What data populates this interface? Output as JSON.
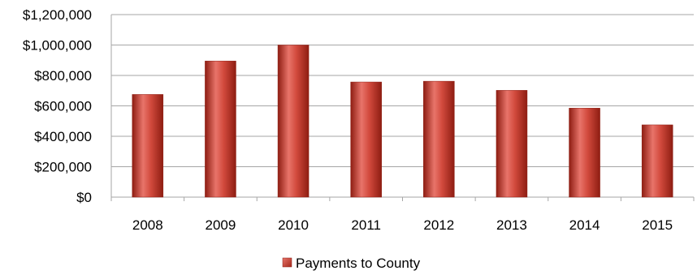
{
  "chart_data": {
    "type": "bar",
    "categories": [
      "2008",
      "2009",
      "2010",
      "2011",
      "2012",
      "2013",
      "2014",
      "2015"
    ],
    "series": [
      {
        "name": "Payments to County",
        "values": [
          675000,
          895000,
          1000000,
          757000,
          762000,
          702000,
          585000,
          475000
        ]
      }
    ],
    "title": "",
    "xlabel": "",
    "ylabel": "",
    "ylim": [
      0,
      1200000
    ],
    "yticks": [
      "$0",
      "$200,000",
      "$400,000",
      "$600,000",
      "$800,000",
      "$1,000,000",
      "$1,200,000"
    ],
    "grid": true,
    "legend_position": "bottom",
    "colors": {
      "bar": "#c0392b",
      "bar_light": "#e8746a",
      "bar_dark": "#8e1d12",
      "grid": "#a6a6a6"
    }
  }
}
